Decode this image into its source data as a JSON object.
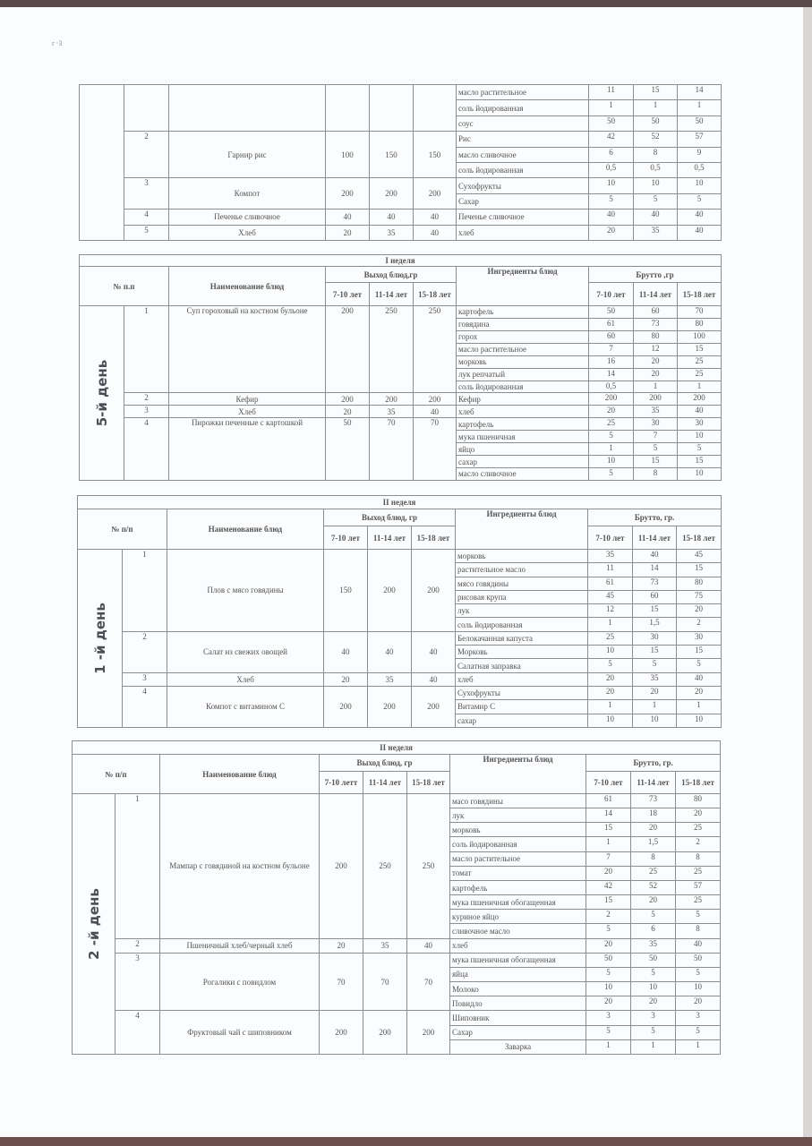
{
  "page_mark": "r  ·3",
  "tables": [
    {
      "week": "",
      "header": null,
      "day": "",
      "dishes": [
        {
          "num": "",
          "name": "",
          "yield": [
            "",
            "",
            ""
          ],
          "ingredients": [
            {
              "name": "масло растительное",
              "brutto": [
                "11",
                "15",
                "14"
              ]
            },
            {
              "name": "соль йодированная",
              "brutto": [
                "1",
                "1",
                "1"
              ]
            },
            {
              "name": "соус",
              "brutto": [
                "50",
                "50",
                "50"
              ]
            }
          ]
        },
        {
          "num": "2",
          "name": "Гарнир рис",
          "yield": [
            "100",
            "150",
            "150"
          ],
          "ingredients": [
            {
              "name": "Рис",
              "brutto": [
                "42",
                "52",
                "57"
              ]
            },
            {
              "name": "масло сливочное",
              "brutto": [
                "6",
                "8",
                "9"
              ]
            },
            {
              "name": "соль йодированная",
              "brutto": [
                "0,5",
                "0,5",
                "0,5"
              ]
            }
          ]
        },
        {
          "num": "3",
          "name": "Компот",
          "yield": [
            "200",
            "200",
            "200"
          ],
          "ingredients": [
            {
              "name": "Сухофрукты",
              "brutto": [
                "10",
                "10",
                "10"
              ]
            },
            {
              "name": "Сахар",
              "brutto": [
                "5",
                "5",
                "5"
              ]
            }
          ]
        },
        {
          "num": "4",
          "name": "Печенье сливочное",
          "yield": [
            "40",
            "40",
            "40"
          ],
          "ingredients": [
            {
              "name": "Печенье сливочное",
              "brutto": [
                "40",
                "40",
                "40"
              ]
            }
          ]
        },
        {
          "num": "5",
          "name": "Хлеб",
          "yield": [
            "20",
            "35",
            "40"
          ],
          "ingredients": [
            {
              "name": "хлеб",
              "brutto": [
                "20",
                "35",
                "40"
              ]
            }
          ]
        }
      ]
    },
    {
      "week": "I неделя",
      "header": {
        "num": "№ п.п",
        "name": "Наименование блюд",
        "yield": "Выход блюд,гр",
        "ingredients": "Ингредиенты  блюд",
        "brutto": "Брутто ,гр",
        "ages": [
          "7-10 лет",
          "11-14 лет",
          "15-18 лет"
        ],
        "ages_brutto": [
          "7-10 лет",
          "11-14 лет",
          "15-18 лет"
        ]
      },
      "day": "5-й день",
      "dishes": [
        {
          "num": "1",
          "name": "Суп гороховый на костном бульоне",
          "yield": [
            "200",
            "250",
            "250"
          ],
          "ingredients": [
            {
              "name": "картофель",
              "brutto": [
                "50",
                "60",
                "70"
              ]
            },
            {
              "name": "говядина",
              "brutto": [
                "61",
                "73",
                "80"
              ]
            },
            {
              "name": "горох",
              "brutto": [
                "60",
                "80",
                "100"
              ]
            },
            {
              "name": "масло растительное",
              "brutto": [
                "7",
                "12",
                "15"
              ]
            },
            {
              "name": "морковь",
              "brutto": [
                "16",
                "20",
                "25"
              ]
            },
            {
              "name": "лук репчатый",
              "brutto": [
                "14",
                "20",
                "25"
              ]
            },
            {
              "name": "соль йодированная",
              "brutto": [
                "0,5",
                "1",
                "1"
              ]
            }
          ]
        },
        {
          "num": "2",
          "name": "Кефир",
          "yield": [
            "200",
            "200",
            "200"
          ],
          "ingredients": [
            {
              "name": "Кефир",
              "brutto": [
                "200",
                "200",
                "200"
              ]
            }
          ]
        },
        {
          "num": "3",
          "name": "Хлеб",
          "yield": [
            "20",
            "35",
            "40"
          ],
          "ingredients": [
            {
              "name": "хлеб",
              "brutto": [
                "20",
                "35",
                "40"
              ]
            }
          ]
        },
        {
          "num": "4",
          "name": "Пирожки печенные с картошкой",
          "yield": [
            "50",
            "70",
            "70"
          ],
          "ingredients": [
            {
              "name": "картофель",
              "brutto": [
                "25",
                "30",
                "30"
              ]
            },
            {
              "name": "мука пшеничная",
              "brutto": [
                "5",
                "7",
                "10"
              ]
            },
            {
              "name": "яйцо",
              "brutto": [
                "1",
                "5",
                "5"
              ]
            },
            {
              "name": "сахар",
              "brutto": [
                "10",
                "15",
                "15"
              ]
            },
            {
              "name": "масло сливочное",
              "brutto": [
                "5",
                "8",
                "10"
              ]
            }
          ]
        }
      ]
    },
    {
      "week": "II неделя",
      "header": {
        "num": "№ п/п",
        "name": "Наименование блюд",
        "yield": "Выход блюд, гр",
        "ingredients": "Ингредиенты  блюд",
        "brutto": "Брутто, гр.",
        "ages": [
          "7-10 лет",
          "11-14 лет",
          "15-18 лет"
        ],
        "ages_brutto": [
          "7-10 лет",
          "11-14 лет",
          "15-18 лет"
        ]
      },
      "day": "1 -й день",
      "dishes": [
        {
          "num": "1",
          "name": "Плов с мясо говядины",
          "yield": [
            "150",
            "200",
            "200"
          ],
          "ingredients": [
            {
              "name": "морковь",
              "brutto": [
                "35",
                "40",
                "45"
              ]
            },
            {
              "name": "растительное масло",
              "brutto": [
                "11",
                "14",
                "15"
              ]
            },
            {
              "name": "мясо говядины",
              "brutto": [
                "61",
                "73",
                "80"
              ]
            },
            {
              "name": "рисовая крупа",
              "brutto": [
                "45",
                "60",
                "75"
              ]
            },
            {
              "name": "лук",
              "brutto": [
                "12",
                "15",
                "20"
              ]
            },
            {
              "name": "соль йодированная",
              "brutto": [
                "1",
                "1,5",
                "2"
              ]
            }
          ]
        },
        {
          "num": "2",
          "name": "Салат из свежих овощей",
          "yield": [
            "40",
            "40",
            "40"
          ],
          "ingredients": [
            {
              "name": "Белокачанная капуста",
              "brutto": [
                "25",
                "30",
                "30"
              ]
            },
            {
              "name": "Морковь",
              "brutto": [
                "10",
                "15",
                "15"
              ]
            },
            {
              "name": "Салатная заправка",
              "brutto": [
                "5",
                "5",
                "5"
              ]
            }
          ]
        },
        {
          "num": "3",
          "name": "Хлеб",
          "yield": [
            "20",
            "35",
            "40"
          ],
          "ingredients": [
            {
              "name": "хлеб",
              "brutto": [
                "20",
                "35",
                "40"
              ]
            }
          ]
        },
        {
          "num": "4",
          "name": "Компот с витамином С",
          "yield": [
            "200",
            "200",
            "200"
          ],
          "ingredients": [
            {
              "name": "Сухофрукты",
              "brutto": [
                "20",
                "20",
                "20"
              ]
            },
            {
              "name": "Витамир С",
              "brutto": [
                "1",
                "1",
                "1"
              ]
            },
            {
              "name": "сахар",
              "brutto": [
                "10",
                "10",
                "10"
              ]
            }
          ]
        }
      ]
    },
    {
      "week": "II неделя",
      "header": {
        "num": "№ п/п",
        "name": "Наименование блюд",
        "yield": "Выход блюд, гр",
        "ingredients": "Ингредиенты  блюд",
        "brutto": "Брутто, гр.",
        "ages": [
          "7-10 летт",
          "11-14 лет",
          "15-18 лет"
        ],
        "ages_brutto": [
          "7-10 лет",
          "11-14 лет",
          "15-18 лет"
        ]
      },
      "day": "2 -й день",
      "dishes": [
        {
          "num": "1",
          "name": "Мампар с говядиной на костном бульоне",
          "yield": [
            "200",
            "250",
            "250"
          ],
          "ingredients": [
            {
              "name": "масо говядины",
              "brutto": [
                "61",
                "73",
                "80"
              ]
            },
            {
              "name": "лук",
              "brutto": [
                "14",
                "18",
                "20"
              ]
            },
            {
              "name": "морковь",
              "brutto": [
                "15",
                "20",
                "25"
              ]
            },
            {
              "name": "соль йодированная",
              "brutto": [
                "1",
                "1,5",
                "2"
              ]
            },
            {
              "name": "масло растительное",
              "brutto": [
                "7",
                "8",
                "8"
              ]
            },
            {
              "name": "томат",
              "brutto": [
                "20",
                "25",
                "25"
              ]
            },
            {
              "name": "картофель",
              "brutto": [
                "42",
                "52",
                "57"
              ]
            },
            {
              "name": "мука пшеничная обогащенная",
              "brutto": [
                "15",
                "20",
                "25"
              ]
            },
            {
              "name": "куриное яйцо",
              "brutto": [
                "2",
                "5",
                "5"
              ]
            },
            {
              "name": "сливочное масло",
              "brutto": [
                "5",
                "6",
                "8"
              ]
            }
          ]
        },
        {
          "num": "2",
          "name": "Пшеничный хлеб/черный хлеб",
          "yield": [
            "20",
            "35",
            "40"
          ],
          "ingredients": [
            {
              "name": "хлеб",
              "brutto": [
                "20",
                "35",
                "40"
              ]
            }
          ]
        },
        {
          "num": "3",
          "name": "Рогалики с повидлом",
          "yield": [
            "70",
            "70",
            "70"
          ],
          "ingredients": [
            {
              "name": "мука пшеничная обогащенная",
              "brutto": [
                "50",
                "50",
                "50"
              ]
            },
            {
              "name": "яйца",
              "brutto": [
                "5",
                "5",
                "5"
              ]
            },
            {
              "name": "Молоко",
              "brutto": [
                "10",
                "10",
                "10"
              ]
            },
            {
              "name": "Повидло",
              "brutto": [
                "20",
                "20",
                "20"
              ]
            }
          ]
        },
        {
          "num": "4",
          "name": "Фруктовый чай с шиповником",
          "yield": [
            "200",
            "200",
            "200"
          ],
          "ingredients": [
            {
              "name": "Шиповник",
              "brutto": [
                "3",
                "3",
                "3"
              ]
            },
            {
              "name": "Сахар",
              "brutto": [
                "5",
                "5",
                "5"
              ]
            },
            {
              "name": "Заварка",
              "brutto": [
                "1",
                "1",
                "1"
              ]
            }
          ]
        }
      ]
    }
  ]
}
